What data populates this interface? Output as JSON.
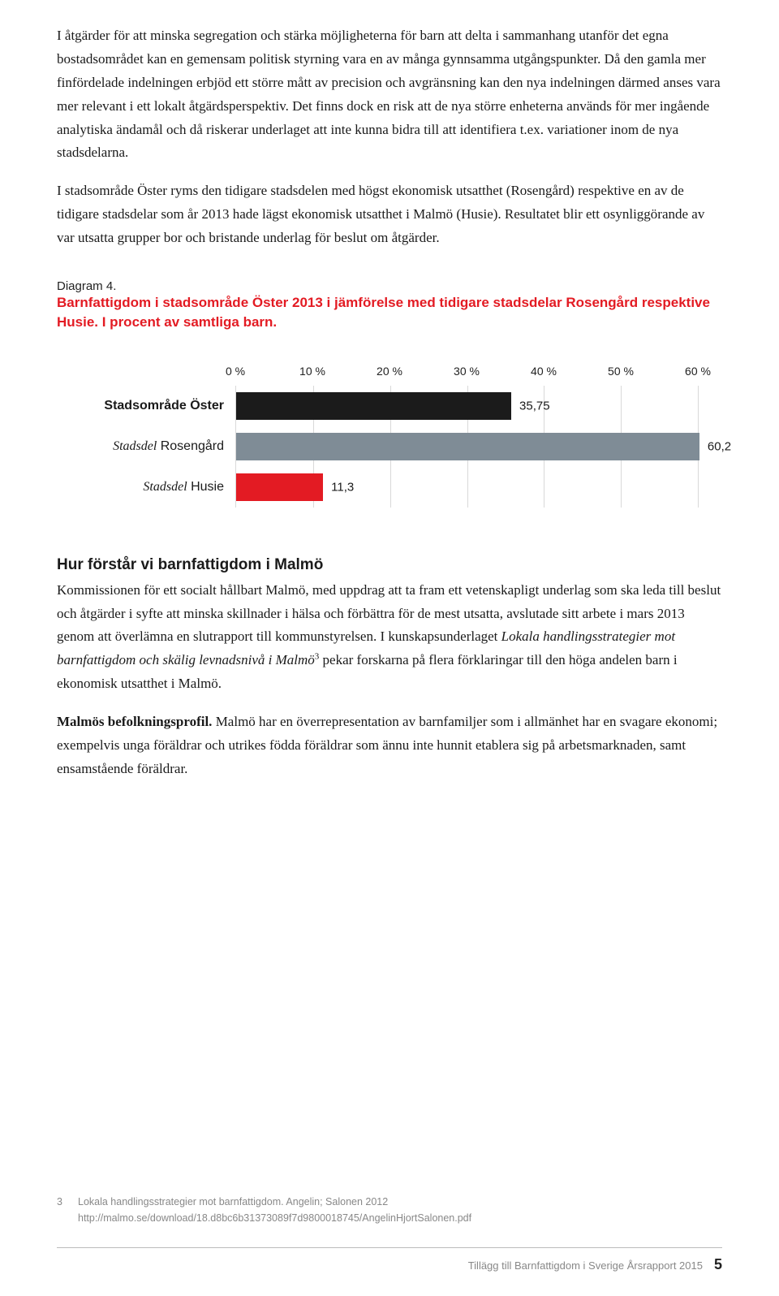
{
  "paragraphs": {
    "p1": "I åtgärder för att minska segregation och stärka möjligheterna för barn att delta i sammanhang utanför det egna bostadsområdet kan en gemensam politisk styrning vara en av många gynnsamma utgångspunkter. Då den gamla mer finfördelade indelningen erbjöd ett större mått av precision och avgränsning kan den nya indelningen därmed anses vara mer relevant i ett lokalt åtgärdsperspektiv. Det finns dock en risk att de nya större enheterna används för mer ingående analytiska ändamål och då riskerar underlaget att inte kunna bidra till att identifiera t.ex. variationer inom de nya stadsdelarna.",
    "p2": "I stadsområde Öster ryms den tidigare stadsdelen med högst ekonomisk utsatthet (Rosengård) respektive en av de tidigare stadsdelar som år 2013 hade lägst ekonomisk utsatthet i Malmö (Husie). Resultatet blir ett osynliggörande av var utsatta grupper bor och bristande underlag för beslut om åtgärder."
  },
  "diagram": {
    "label": "Diagram 4.",
    "title": "Barnfattigdom i stadsområde Öster 2013 i jämförelse med tidigare stadsdelar Rosengård respektive Husie. I procent av samtliga barn."
  },
  "chart": {
    "type": "bar",
    "xmax": 60,
    "ticks": [
      0,
      10,
      20,
      30,
      40,
      50,
      60
    ],
    "tick_suffix": " %",
    "gridline_color": "#d9d9d9",
    "rows": [
      {
        "label_plain": "Stadsområde Öster",
        "label_bold": true,
        "value": 35.75,
        "value_label": "35,75",
        "color": "#1b1b1b"
      },
      {
        "label_italic_prefix": "Stadsdel",
        "label_rest": " Rosengård",
        "value": 60.2,
        "value_label": "60,2",
        "color": "#7f8c96"
      },
      {
        "label_italic_prefix": "Stadsdel",
        "label_rest": " Husie",
        "value": 11.3,
        "value_label": "11,3",
        "color": "#e31b23"
      }
    ]
  },
  "section2": {
    "heading": "Hur förstår vi barnfattigdom i Malmö",
    "p1a": "Kommissionen för ett socialt hållbart Malmö, med uppdrag att ta fram ett vetenskapligt underlag som ska leda till beslut och åtgärder i syfte att minska skillnader i hälsa och förbättra för de mest utsatta, avslutade sitt arbete i mars 2013 genom att överlämna en slutrapport till kommunstyrelsen. I kunskapsunderlaget ",
    "p1_italic": "Lokala handlingsstrategier mot barnfattigdom och skälig levnadsnivå i Malmö",
    "p1b": " pekar forskarna på flera förklaringar till den höga andelen barn i ekonomisk utsatthet i Malmö.",
    "p2_bold": "Malmös befolkningsprofil.",
    "p2": " Malmö har en överrepresentation av barnfamiljer som i allmänhet har en svagare ekonomi; exempelvis unga föräldrar och utrikes födda föräldrar som ännu inte hunnit etablera sig på arbetsmarknaden, samt ensamstående föräldrar."
  },
  "footnote": {
    "num": "3",
    "line1": "Lokala handlingsstrategier mot barnfattigdom. Angelin; Salonen 2012",
    "line2": "http://malmo.se/download/18.d8bc6b31373089f7d9800018745/AngelinHjortSalonen.pdf"
  },
  "footer": {
    "text": "Tillägg till Barnfattigdom i Sverige Årsrapport 2015",
    "page": "5"
  }
}
